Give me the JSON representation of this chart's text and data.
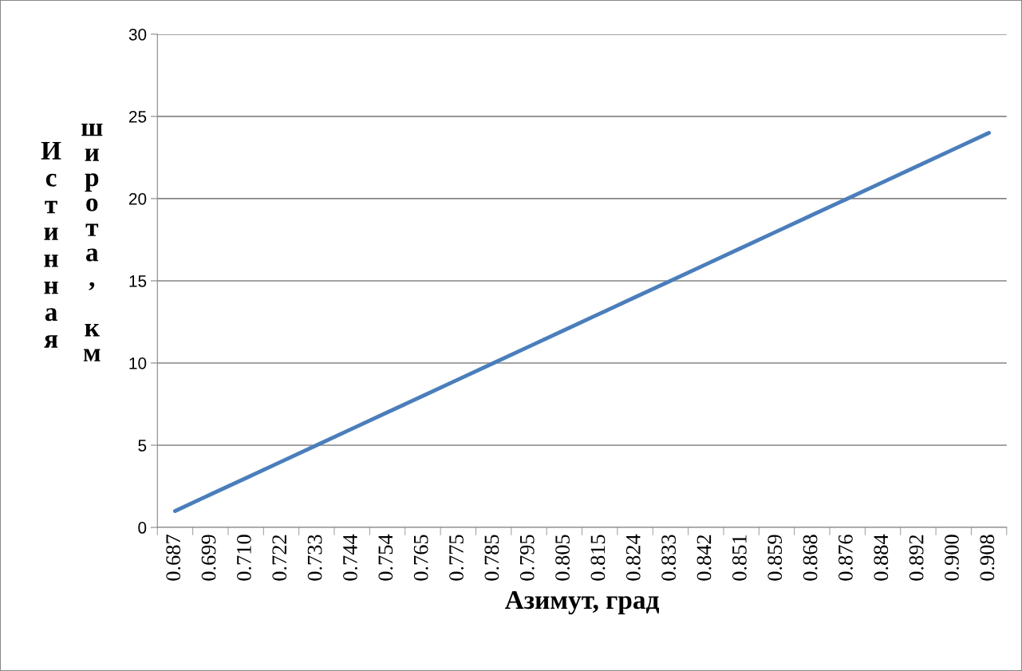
{
  "chart_data": {
    "type": "line",
    "xlabel": "Азимут, град",
    "ylabel": "Истинная широта, км",
    "categories": [
      "0.687",
      "0.699",
      "0.710",
      "0.722",
      "0.733",
      "0.744",
      "0.754",
      "0.765",
      "0.775",
      "0.785",
      "0.795",
      "0.805",
      "0.815",
      "0.824",
      "0.833",
      "0.842",
      "0.851",
      "0.859",
      "0.868",
      "0.876",
      "0.884",
      "0.892",
      "0.900",
      "0.908"
    ],
    "series": [
      {
        "color": "#4a7ebb",
        "values": [
          1,
          2,
          3,
          4,
          5,
          6,
          7,
          8,
          9,
          10,
          11,
          12,
          13,
          14,
          15,
          16,
          17,
          18,
          19,
          20,
          21,
          22,
          23,
          24
        ]
      }
    ],
    "ylim": [
      0,
      30
    ],
    "yticks": [
      0,
      5,
      10,
      15,
      20,
      25,
      30
    ],
    "grid": "y",
    "marker": "none",
    "line_style": "solid"
  }
}
